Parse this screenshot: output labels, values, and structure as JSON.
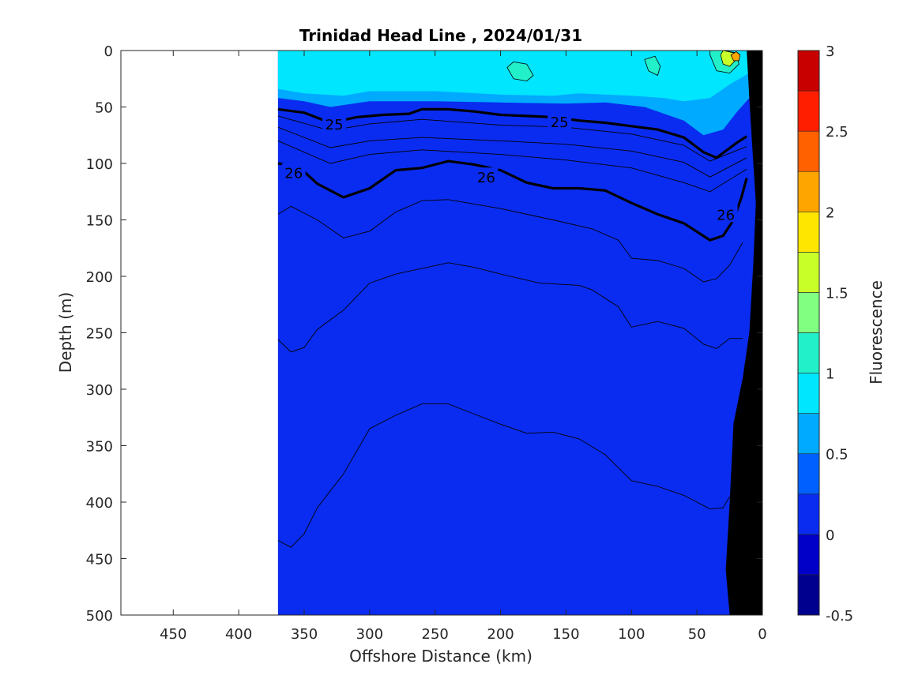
{
  "chart_data": {
    "type": "contour",
    "title": "Trinidad Head Line , 2024/01/31",
    "xlabel": "Offshore Distance (km)",
    "ylabel": "Depth (m)",
    "colorbar_label": "Fluorescence",
    "x_reversed": true,
    "y_reversed": true,
    "xlim": [
      490,
      0
    ],
    "ylim": [
      500,
      0
    ],
    "x_ticks": [
      450,
      400,
      350,
      300,
      250,
      200,
      150,
      100,
      50,
      0
    ],
    "y_ticks": [
      0,
      50,
      100,
      150,
      200,
      250,
      300,
      350,
      400,
      450,
      500
    ],
    "colorbar_ticks": [
      -0.5,
      0,
      0.5,
      1,
      1.5,
      2,
      2.5,
      3
    ],
    "color_levels": [
      {
        "from": -0.5,
        "to": -0.25,
        "color": "#00008f"
      },
      {
        "from": -0.25,
        "to": 0,
        "color": "#0000c8"
      },
      {
        "from": 0,
        "to": 0.25,
        "color": "#0a2cf0"
      },
      {
        "from": 0.25,
        "to": 0.5,
        "color": "#0060ff"
      },
      {
        "from": 0.5,
        "to": 0.75,
        "color": "#00aaff"
      },
      {
        "from": 0.75,
        "to": 1,
        "color": "#00e6ff"
      },
      {
        "from": 1,
        "to": 1.25,
        "color": "#22f0c8"
      },
      {
        "from": 1.25,
        "to": 1.5,
        "color": "#80ff80"
      },
      {
        "from": 1.5,
        "to": 1.75,
        "color": "#c8ff28"
      },
      {
        "from": 1.75,
        "to": 2,
        "color": "#ffe600"
      },
      {
        "from": 2,
        "to": 2.25,
        "color": "#ffa500"
      },
      {
        "from": 2.25,
        "to": 2.5,
        "color": "#ff6000"
      },
      {
        "from": 2.5,
        "to": 2.75,
        "color": "#ff1e00"
      },
      {
        "from": 2.75,
        "to": 3,
        "color": "#c80000"
      }
    ],
    "data_extent_x": [
      370,
      0
    ],
    "fluorescence_fields": [
      {
        "level": 0.5,
        "points": [
          [
            370,
            0
          ],
          [
            370,
            42
          ],
          [
            350,
            45
          ],
          [
            330,
            50
          ],
          [
            300,
            45
          ],
          [
            250,
            45
          ],
          [
            200,
            46
          ],
          [
            150,
            47
          ],
          [
            120,
            46
          ],
          [
            90,
            50
          ],
          [
            60,
            62
          ],
          [
            45,
            75
          ],
          [
            30,
            70
          ],
          [
            20,
            55
          ],
          [
            10,
            42
          ],
          [
            10,
            0
          ]
        ]
      },
      {
        "level": 0.75,
        "points": [
          [
            370,
            0
          ],
          [
            370,
            34
          ],
          [
            350,
            38
          ],
          [
            320,
            40
          ],
          [
            300,
            36
          ],
          [
            250,
            36
          ],
          [
            200,
            39
          ],
          [
            160,
            40
          ],
          [
            140,
            38
          ],
          [
            100,
            40
          ],
          [
            75,
            42
          ],
          [
            60,
            45
          ],
          [
            40,
            42
          ],
          [
            25,
            30
          ],
          [
            10,
            20
          ],
          [
            10,
            0
          ]
        ]
      },
      {
        "level": 1.0,
        "points": [
          [
            195,
            15
          ],
          [
            190,
            25
          ],
          [
            180,
            27
          ],
          [
            175,
            22
          ],
          [
            180,
            12
          ],
          [
            190,
            10
          ]
        ]
      },
      {
        "level": 1.0,
        "points": [
          [
            90,
            8
          ],
          [
            87,
            18
          ],
          [
            80,
            22
          ],
          [
            78,
            14
          ],
          [
            82,
            5
          ]
        ]
      },
      {
        "level": 1.0,
        "points": [
          [
            40,
            4
          ],
          [
            35,
            18
          ],
          [
            25,
            20
          ],
          [
            18,
            12
          ],
          [
            20,
            2
          ],
          [
            30,
            0
          ],
          [
            40,
            0
          ]
        ]
      },
      {
        "level": 1.5,
        "points": [
          [
            32,
            4
          ],
          [
            30,
            12
          ],
          [
            25,
            14
          ],
          [
            20,
            8
          ],
          [
            22,
            2
          ],
          [
            30,
            0
          ]
        ]
      },
      {
        "level": 2.0,
        "points": [
          [
            24,
            4
          ],
          [
            22,
            9
          ],
          [
            18,
            9
          ],
          [
            17,
            4
          ],
          [
            20,
            1
          ]
        ]
      }
    ],
    "density_contours": [
      {
        "level": 25,
        "labeled": true,
        "labels": [
          [
            327,
            65
          ],
          [
            155,
            63
          ]
        ],
        "points": [
          [
            370,
            52
          ],
          [
            350,
            55
          ],
          [
            330,
            64
          ],
          [
            310,
            59
          ],
          [
            290,
            57
          ],
          [
            270,
            56
          ],
          [
            260,
            52
          ],
          [
            240,
            52
          ],
          [
            220,
            54
          ],
          [
            200,
            57
          ],
          [
            180,
            58
          ],
          [
            160,
            59
          ],
          [
            140,
            62
          ],
          [
            120,
            64
          ],
          [
            100,
            67
          ],
          [
            80,
            70
          ],
          [
            60,
            77
          ],
          [
            45,
            90
          ],
          [
            35,
            95
          ],
          [
            20,
            82
          ],
          [
            12,
            76
          ]
        ]
      },
      {
        "level": 26,
        "labeled": true,
        "labels": [
          [
            358,
            108
          ],
          [
            211,
            112
          ],
          [
            28,
            145
          ]
        ],
        "points": [
          [
            370,
            100
          ],
          [
            355,
            102
          ],
          [
            340,
            118
          ],
          [
            320,
            130
          ],
          [
            300,
            122
          ],
          [
            280,
            106
          ],
          [
            260,
            104
          ],
          [
            240,
            98
          ],
          [
            220,
            101
          ],
          [
            200,
            106
          ],
          [
            180,
            117
          ],
          [
            160,
            122
          ],
          [
            140,
            122
          ],
          [
            120,
            124
          ],
          [
            100,
            135
          ],
          [
            80,
            145
          ],
          [
            60,
            153
          ],
          [
            40,
            168
          ],
          [
            30,
            164
          ],
          [
            22,
            150
          ],
          [
            16,
            130
          ],
          [
            12,
            113
          ]
        ]
      }
    ],
    "minor_isopycnals": [
      {
        "points": [
          [
            370,
            58
          ],
          [
            330,
            71
          ],
          [
            300,
            65
          ],
          [
            260,
            61
          ],
          [
            200,
            66
          ],
          [
            150,
            68
          ],
          [
            100,
            74
          ],
          [
            60,
            84
          ],
          [
            40,
            98
          ],
          [
            12,
            85
          ]
        ]
      },
      {
        "points": [
          [
            370,
            68
          ],
          [
            330,
            86
          ],
          [
            300,
            80
          ],
          [
            260,
            77
          ],
          [
            200,
            80
          ],
          [
            150,
            83
          ],
          [
            100,
            89
          ],
          [
            60,
            99
          ],
          [
            40,
            112
          ],
          [
            12,
            95
          ]
        ]
      },
      {
        "points": [
          [
            370,
            80
          ],
          [
            330,
            100
          ],
          [
            300,
            92
          ],
          [
            260,
            88
          ],
          [
            200,
            92
          ],
          [
            150,
            97
          ],
          [
            100,
            104
          ],
          [
            60,
            117
          ],
          [
            40,
            125
          ],
          [
            12,
            105
          ]
        ]
      },
      {
        "points": [
          [
            370,
            145
          ],
          [
            360,
            138
          ],
          [
            340,
            150
          ],
          [
            320,
            166
          ],
          [
            300,
            160
          ],
          [
            280,
            143
          ],
          [
            260,
            133
          ],
          [
            240,
            132
          ],
          [
            200,
            140
          ],
          [
            160,
            150
          ],
          [
            130,
            158
          ],
          [
            110,
            168
          ],
          [
            100,
            184
          ],
          [
            80,
            186
          ],
          [
            60,
            193
          ],
          [
            45,
            205
          ],
          [
            35,
            202
          ],
          [
            25,
            190
          ],
          [
            15,
            170
          ]
        ]
      },
      {
        "points": [
          [
            370,
            256
          ],
          [
            360,
            267
          ],
          [
            350,
            263
          ],
          [
            340,
            247
          ],
          [
            320,
            230
          ],
          [
            300,
            206
          ],
          [
            280,
            198
          ],
          [
            240,
            188
          ],
          [
            220,
            192
          ],
          [
            200,
            198
          ],
          [
            170,
            206
          ],
          [
            140,
            208
          ],
          [
            130,
            212
          ],
          [
            110,
            227
          ],
          [
            100,
            245
          ],
          [
            80,
            240
          ],
          [
            60,
            246
          ],
          [
            45,
            260
          ],
          [
            35,
            264
          ],
          [
            25,
            255
          ],
          [
            15,
            255
          ]
        ]
      },
      {
        "points": [
          [
            370,
            434
          ],
          [
            360,
            440
          ],
          [
            350,
            428
          ],
          [
            340,
            405
          ],
          [
            320,
            375
          ],
          [
            300,
            335
          ],
          [
            280,
            323
          ],
          [
            260,
            313
          ],
          [
            240,
            313
          ],
          [
            220,
            322
          ],
          [
            200,
            331
          ],
          [
            180,
            339
          ],
          [
            160,
            338
          ],
          [
            140,
            344
          ],
          [
            120,
            358
          ],
          [
            100,
            381
          ],
          [
            80,
            386
          ],
          [
            60,
            394
          ],
          [
            40,
            406
          ],
          [
            30,
            405
          ],
          [
            25,
            395
          ]
        ]
      }
    ],
    "bottom_topography": [
      [
        12,
        0
      ],
      [
        10,
        42
      ],
      [
        8,
        80
      ],
      [
        5,
        135
      ],
      [
        7,
        190
      ],
      [
        10,
        250
      ],
      [
        15,
        290
      ],
      [
        22,
        330
      ],
      [
        25,
        400
      ],
      [
        28,
        460
      ],
      [
        25,
        500
      ],
      [
        0,
        500
      ],
      [
        0,
        0
      ]
    ]
  }
}
